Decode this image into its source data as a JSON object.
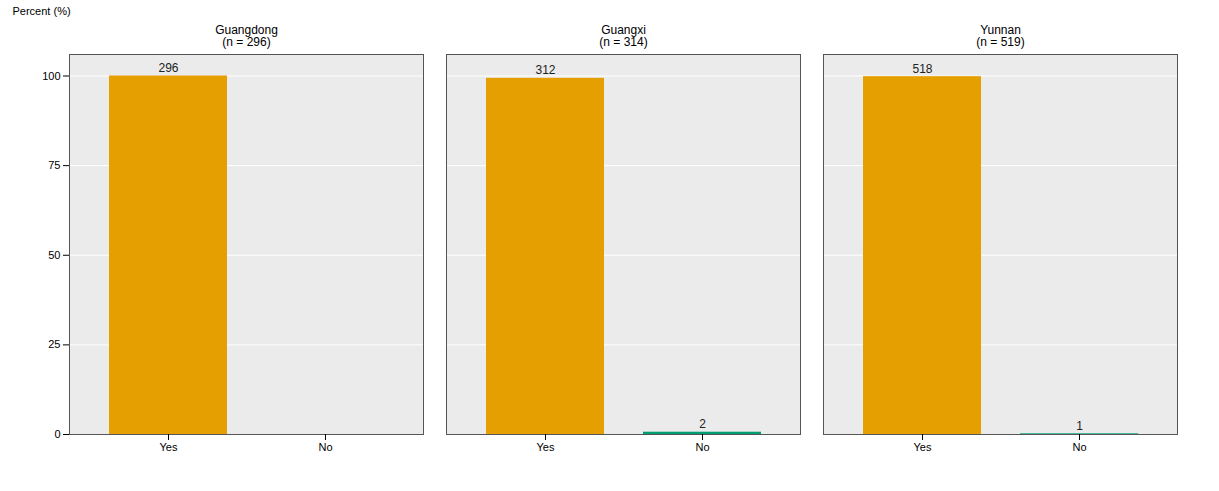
{
  "chart_data": {
    "type": "bar",
    "y_label": "Percent (%)",
    "categories": [
      "Yes",
      "No"
    ],
    "colors": [
      "#E69F00",
      "#009E73"
    ],
    "ylim": [
      0,
      106
    ],
    "yticks": [
      0,
      25,
      50,
      75,
      100
    ],
    "grid": true,
    "panels": [
      {
        "title": "Guangdong",
        "subtitle": "(n = 296)",
        "values": [
          100,
          null
        ],
        "counts": [
          296,
          null
        ]
      },
      {
        "title": "Guangxi",
        "subtitle": "(n = 314)",
        "values": [
          99.36,
          0.64
        ],
        "counts": [
          312,
          2
        ]
      },
      {
        "title": "Yunnan",
        "subtitle": "(n = 519)",
        "values": [
          99.81,
          0.19
        ],
        "counts": [
          518,
          1
        ]
      }
    ]
  }
}
